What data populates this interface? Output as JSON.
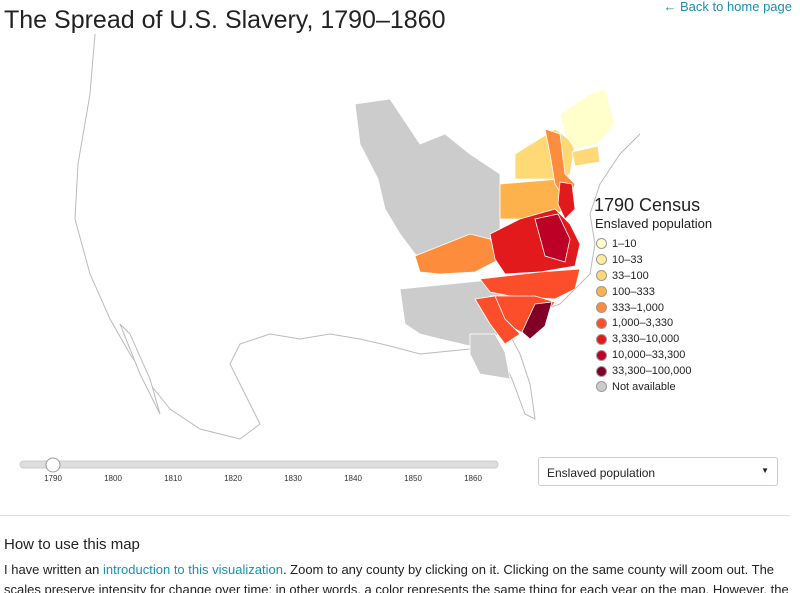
{
  "header": {
    "title": "The Spread of U.S. Slavery, 1790–1860",
    "back_link": "← Back to home page"
  },
  "legend": {
    "title": "1790 Census",
    "subtitle": "Enslaved population",
    "items": [
      {
        "label": "1–10",
        "color": "#ffffcc"
      },
      {
        "label": "10–33",
        "color": "#ffeda0"
      },
      {
        "label": "33–100",
        "color": "#fed976"
      },
      {
        "label": "100–333",
        "color": "#feb24c"
      },
      {
        "label": "333–1,000",
        "color": "#fd8d3c"
      },
      {
        "label": "1,000–3,330",
        "color": "#fc4e2a"
      },
      {
        "label": "3,330–10,000",
        "color": "#e31a1c"
      },
      {
        "label": "10,000–33,300",
        "color": "#bd0026"
      },
      {
        "label": "33,300–100,000",
        "color": "#800026"
      },
      {
        "label": "Not available",
        "color": "#cccccc"
      }
    ]
  },
  "slider": {
    "value": 1790,
    "years": [
      1790,
      1800,
      1810,
      1820,
      1830,
      1840,
      1850,
      1860
    ]
  },
  "dropdown": {
    "selected": "Enslaved population"
  },
  "help": {
    "heading": "How to use this map",
    "text_before": "I have written an ",
    "link": "introduction to this visualization",
    "text_after": ". Zoom to any county by clicking on it. Clicking on the same county will zoom out. The scales preserve intensity for change over time: in other words, a color represents the same thing for each year on the map. However, the"
  }
}
